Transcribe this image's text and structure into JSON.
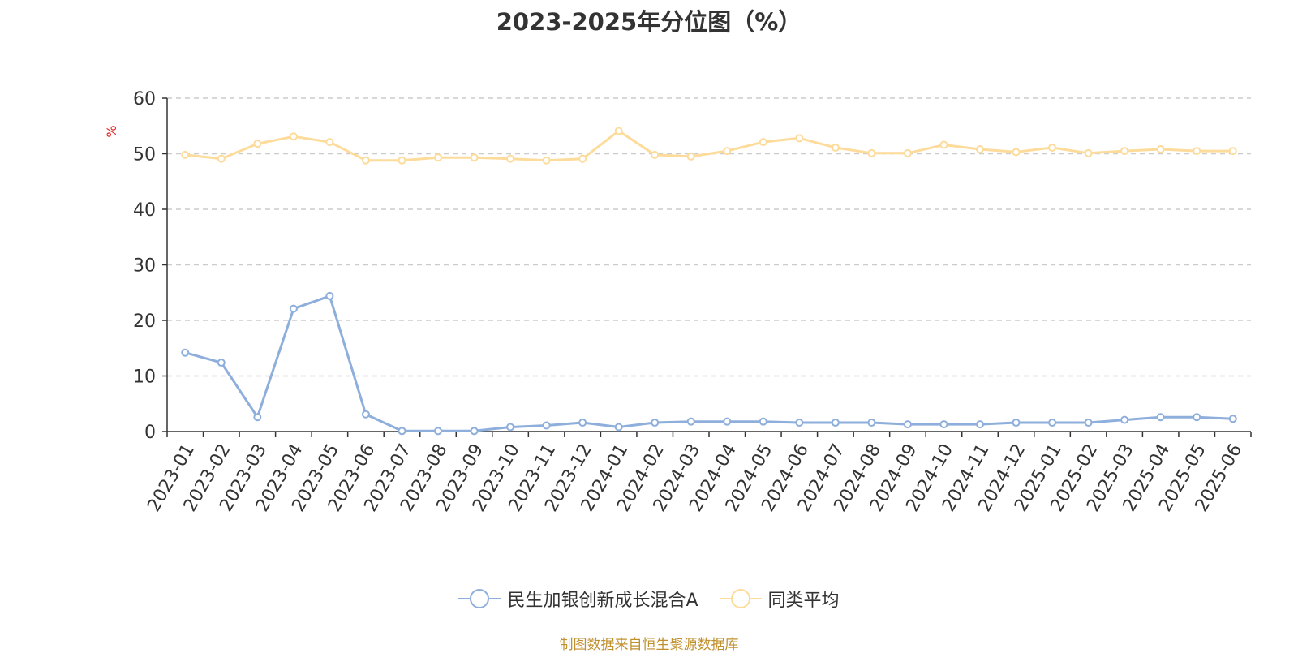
{
  "chart_data": {
    "type": "line",
    "title": "2023-2025年分位图（%）",
    "ylabel": "%",
    "ylim": [
      0,
      60
    ],
    "yticks": [
      0,
      10,
      20,
      30,
      40,
      50,
      60
    ],
    "grid": true,
    "legend_position": "bottom",
    "categories": [
      "2023-01",
      "2023-02",
      "2023-03",
      "2023-04",
      "2023-05",
      "2023-06",
      "2023-07",
      "2023-08",
      "2023-09",
      "2023-10",
      "2023-11",
      "2023-12",
      "2024-01",
      "2024-02",
      "2024-03",
      "2024-04",
      "2024-05",
      "2024-06",
      "2024-07",
      "2024-08",
      "2024-09",
      "2024-10",
      "2024-11",
      "2024-12",
      "2025-01",
      "2025-02",
      "2025-03",
      "2025-04",
      "2025-05",
      "2025-06"
    ],
    "series": [
      {
        "name": "民生加银创新成长混合A",
        "color": "#8eaedb",
        "values": [
          14.2,
          12.4,
          2.6,
          22.1,
          24.4,
          3.1,
          0.1,
          0.1,
          0.1,
          0.8,
          1.1,
          1.6,
          0.8,
          1.6,
          1.8,
          1.8,
          1.8,
          1.6,
          1.6,
          1.6,
          1.3,
          1.3,
          1.3,
          1.6,
          1.6,
          1.6,
          2.1,
          2.6,
          2.6,
          2.3
        ]
      },
      {
        "name": "同类平均",
        "color": "#fddb9a",
        "values": [
          49.8,
          49.1,
          51.8,
          53.1,
          52.1,
          48.8,
          48.8,
          49.3,
          49.3,
          49.1,
          48.8,
          49.1,
          54.1,
          49.8,
          49.5,
          50.5,
          52.1,
          52.8,
          51.1,
          50.1,
          50.1,
          51.6,
          50.8,
          50.3,
          51.1,
          50.1,
          50.5,
          50.8,
          50.5,
          50.5
        ]
      }
    ]
  },
  "source_note": "制图数据来自恒生聚源数据库"
}
